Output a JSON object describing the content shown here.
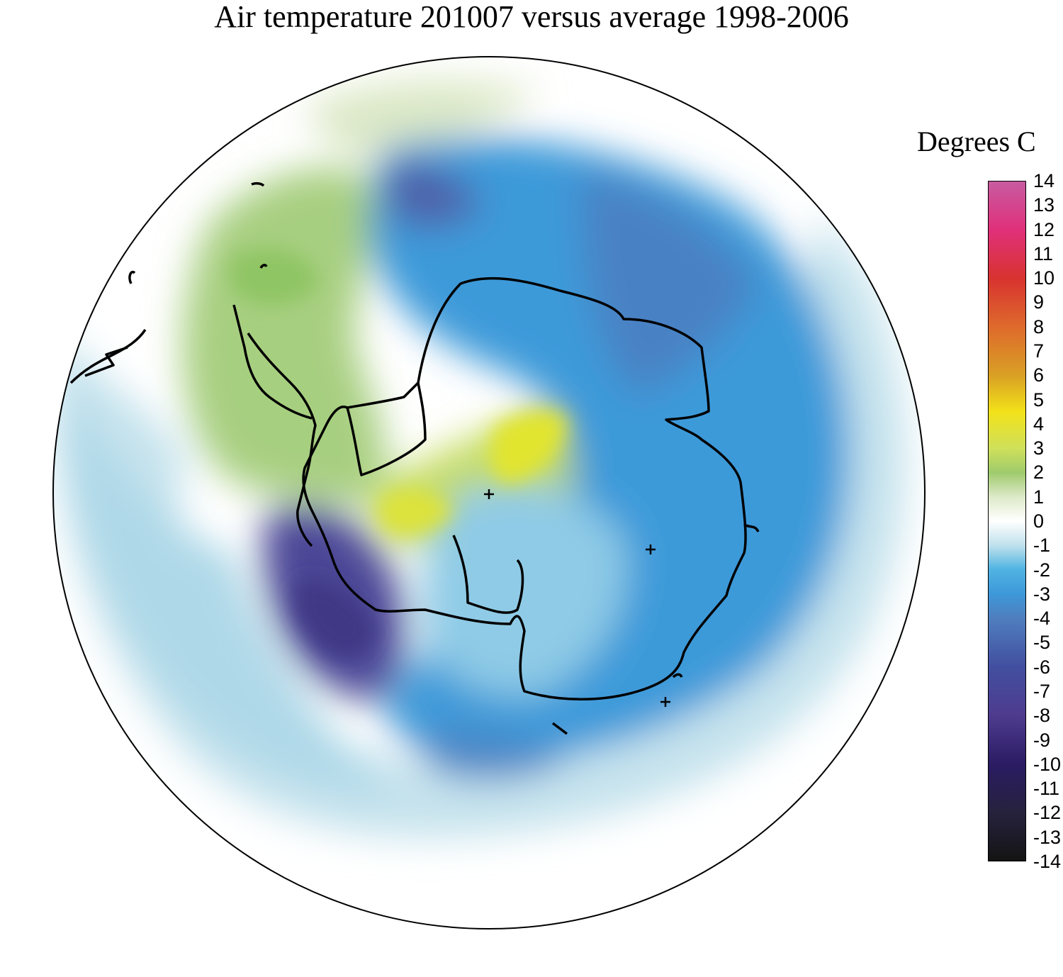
{
  "title": "Air temperature 201007 versus average 1998-2006",
  "legend": {
    "title": "Degrees C",
    "min": -14,
    "max": 14,
    "ticks": [
      "14",
      "13",
      "12",
      "11",
      "10",
      "9",
      "8",
      "7",
      "6",
      "5",
      "4",
      "3",
      "2",
      "1",
      "0",
      "-1",
      "-2",
      "-3",
      "-4",
      "-5",
      "-6",
      "-7",
      "-8",
      "-9",
      "-10",
      "-11",
      "-12",
      "-13",
      "-14"
    ],
    "colors": [
      {
        "v": 14,
        "c": "#c75ba0"
      },
      {
        "v": 12,
        "c": "#e0307a"
      },
      {
        "v": 10,
        "c": "#d8332f"
      },
      {
        "v": 8,
        "c": "#de6a2c"
      },
      {
        "v": 6,
        "c": "#d9a024"
      },
      {
        "v": 4.5,
        "c": "#f2e21a"
      },
      {
        "v": 3,
        "c": "#cfe05a"
      },
      {
        "v": 2,
        "c": "#9fcb6c"
      },
      {
        "v": 1,
        "c": "#dde9c8"
      },
      {
        "v": 0,
        "c": "#ffffff"
      },
      {
        "v": -1,
        "c": "#bfe1ec"
      },
      {
        "v": -2,
        "c": "#4fb3e2"
      },
      {
        "v": -3,
        "c": "#3d98d9"
      },
      {
        "v": -4,
        "c": "#4f7ebe"
      },
      {
        "v": -6,
        "c": "#424fa0"
      },
      {
        "v": -8,
        "c": "#4e3b8e"
      },
      {
        "v": -10,
        "c": "#2b1c64"
      },
      {
        "v": -12,
        "c": "#26223d"
      },
      {
        "v": -14,
        "c": "#141414"
      }
    ]
  },
  "map": {
    "projection": "south-polar-stereographic",
    "variable": "air temperature anomaly",
    "ocean_background": "#ffffff",
    "coast_color": "#000000",
    "anomaly_regions": [
      {
        "name": "south-america-warm",
        "value": 1.5
      },
      {
        "name": "weddell-warm",
        "value": 3.5
      },
      {
        "name": "bellingshausen-cold",
        "value": -7.5
      },
      {
        "name": "east-antarctica-cold",
        "value": -3.5
      },
      {
        "name": "pacific-cool",
        "value": -1.2
      }
    ]
  }
}
